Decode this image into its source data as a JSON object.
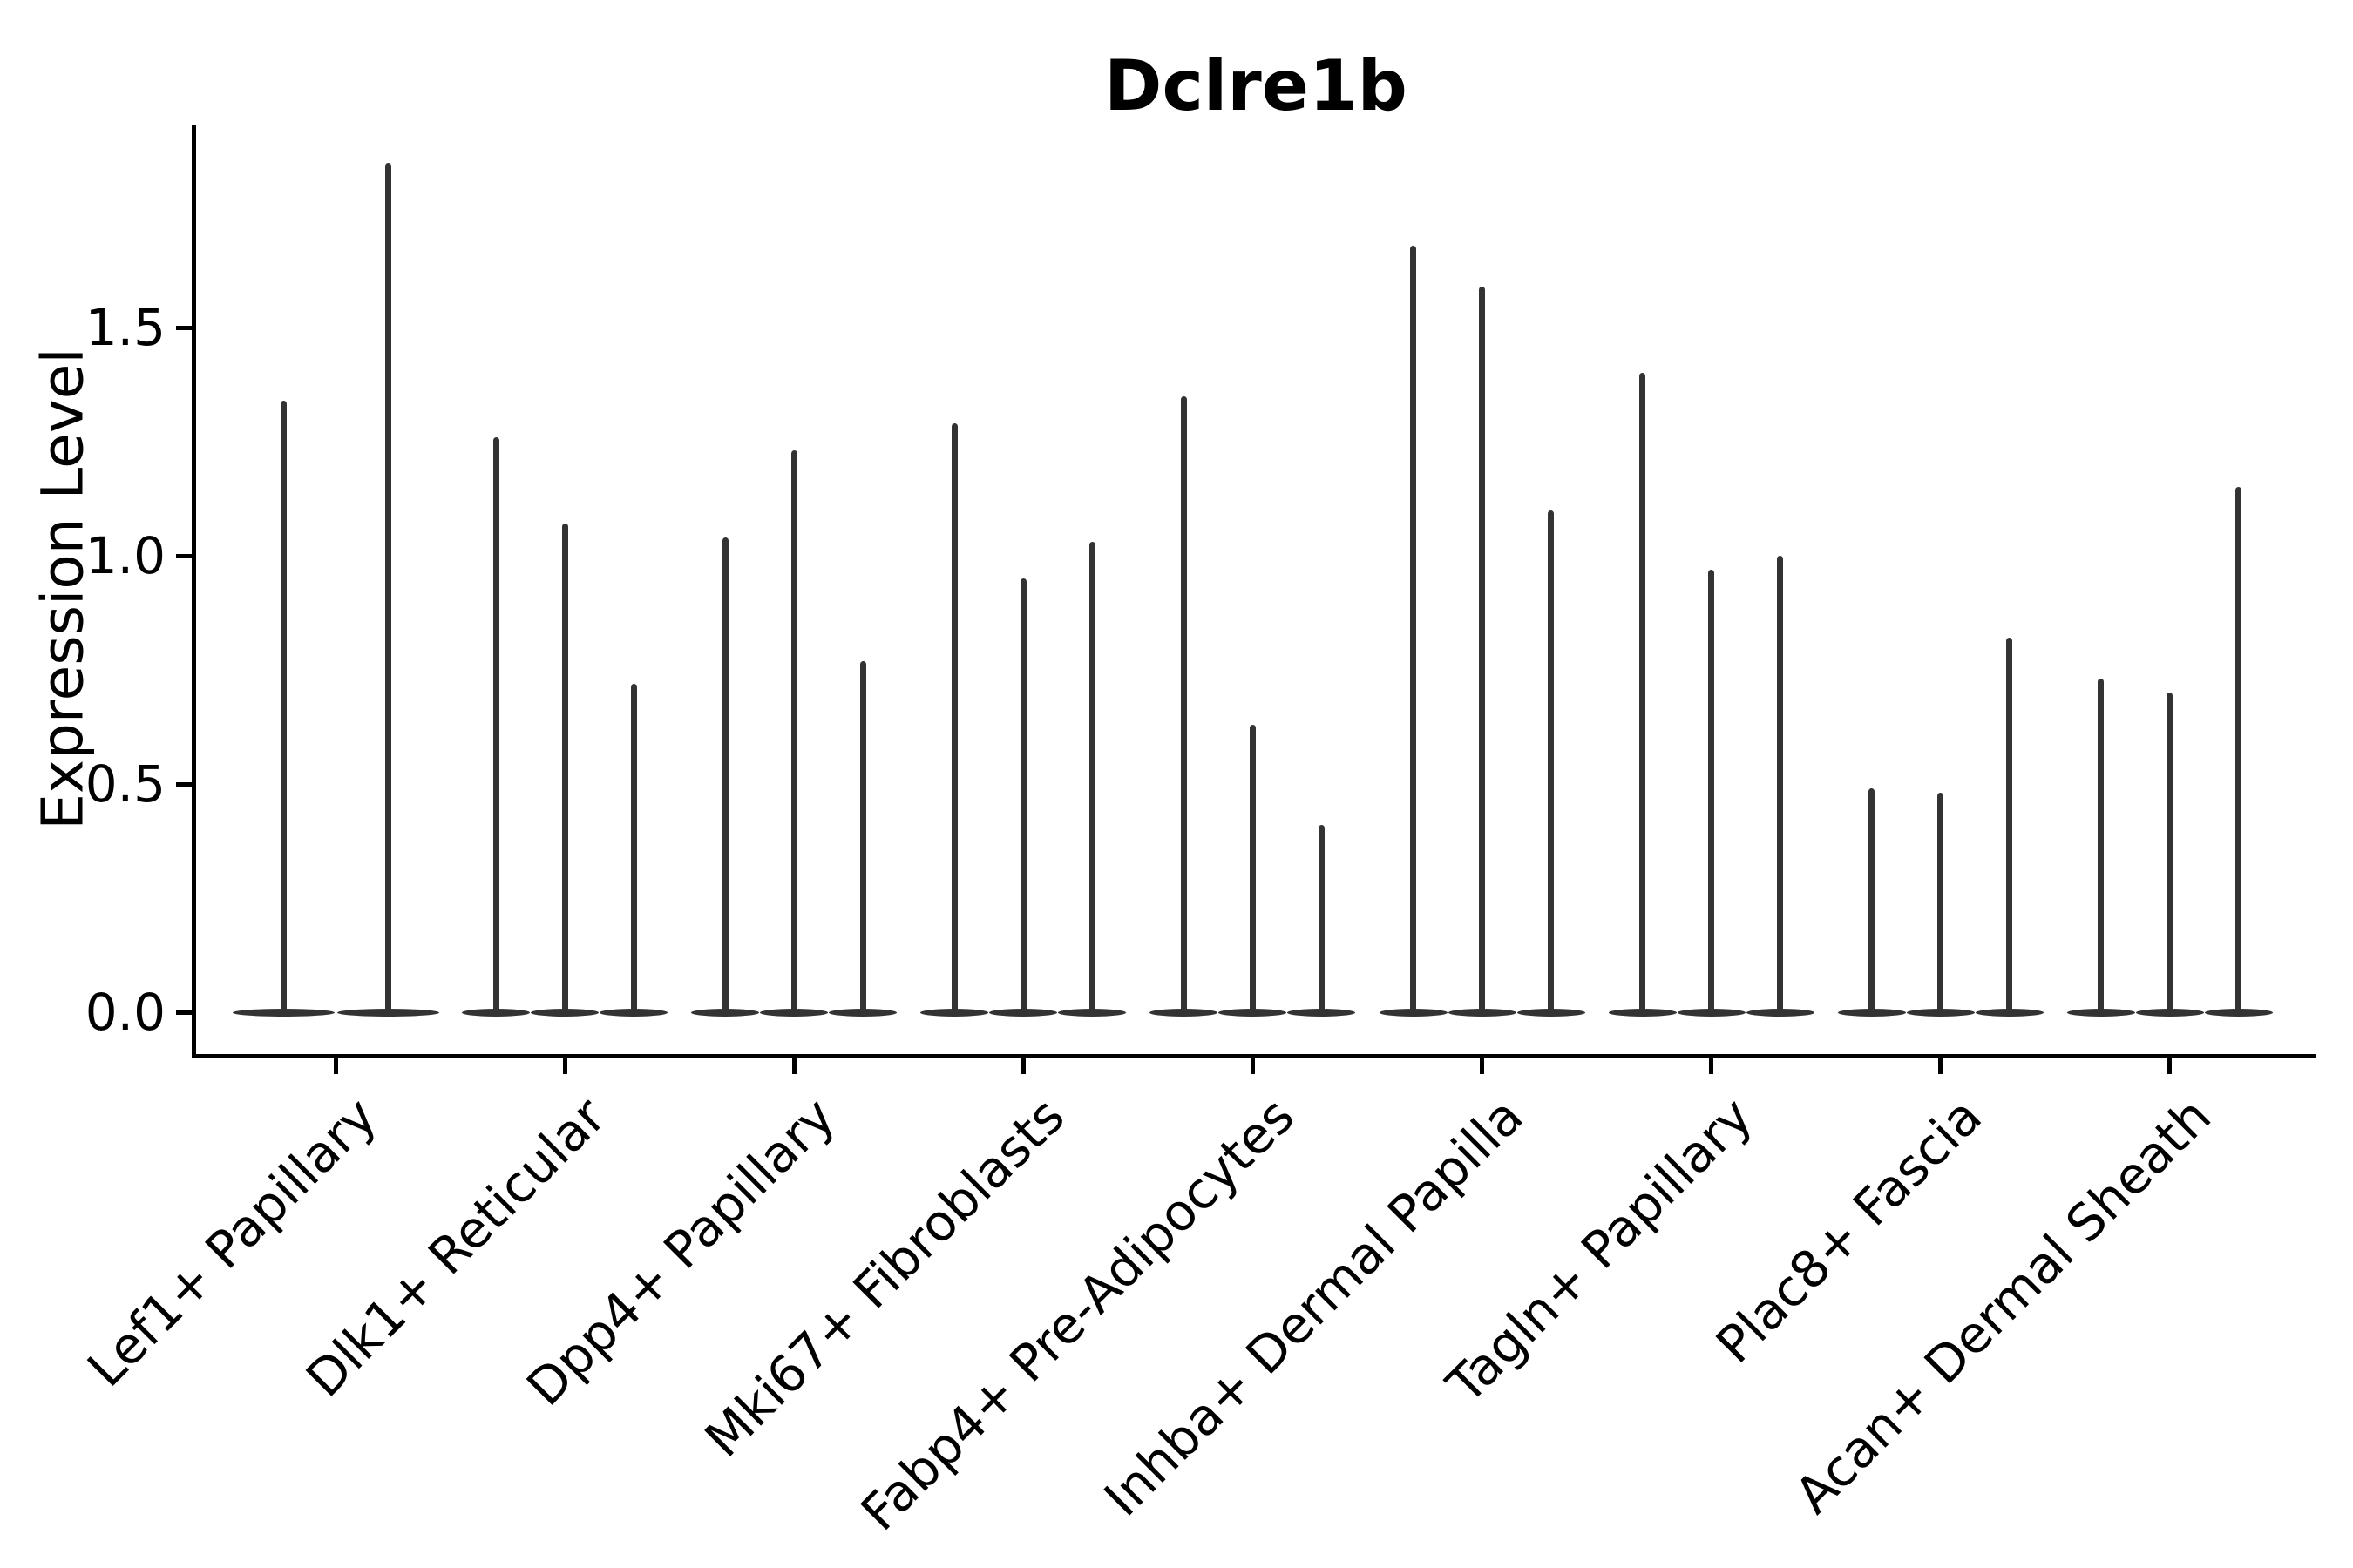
{
  "title": "Dclre1b",
  "axes": {
    "ylabel": "Expression Level",
    "ytick_labels": [
      "0.0",
      "0.5",
      "1.0",
      "1.5"
    ],
    "yticks": [
      0.0,
      0.5,
      1.0,
      1.5
    ]
  },
  "colors": {
    "violin": "#333333",
    "axis": "#000000",
    "text": "#000000",
    "background": "#ffffff"
  },
  "chart_data": {
    "type": "violin",
    "title": "Dclre1b",
    "xlabel": "",
    "ylabel": "Expression Level",
    "ylim": [
      -0.09,
      1.94
    ],
    "yticks": [
      0.0,
      0.5,
      1.0,
      1.5
    ],
    "grid": false,
    "legend_position": "none",
    "description": "Seurat-style violin plot of Dclre1b expression; each cluster shows narrow spike-shaped violins (mass at 0 with a thin tail). Values below are the top (maximum expression) of each spike, left to right within each cluster.",
    "categories": [
      "Lef1+ Papillary",
      "Dlk1+ Reticular",
      "Dpp4+ Papillary",
      "Mki67+ Fibroblasts",
      "Fabp4+ Pre-Adipocytes",
      "Inhba+ Dermal Papilla",
      "Tagln+ Papillary",
      "Plac8+ Fascia",
      "Acan+ Dermal Sheath"
    ],
    "groups": [
      {
        "label": "Lef1+ Papillary",
        "spike_maxima": [
          1.34,
          1.86
        ]
      },
      {
        "label": "Dlk1+ Reticular",
        "spike_maxima": [
          1.26,
          1.07,
          0.72
        ]
      },
      {
        "label": "Dpp4+ Papillary",
        "spike_maxima": [
          1.04,
          1.23,
          0.77
        ]
      },
      {
        "label": "Mki67+ Fibroblasts",
        "spike_maxima": [
          1.29,
          0.95,
          1.03
        ]
      },
      {
        "label": "Fabp4+ Pre-Adipocytes",
        "spike_maxima": [
          1.35,
          0.63,
          0.41
        ]
      },
      {
        "label": "Inhba+ Dermal Papilla",
        "spike_maxima": [
          1.68,
          1.59,
          1.1
        ]
      },
      {
        "label": "Tagln+ Papillary",
        "spike_maxima": [
          1.4,
          0.97,
          1.0
        ]
      },
      {
        "label": "Plac8+ Fascia",
        "spike_maxima": [
          0.49,
          0.48,
          0.82
        ]
      },
      {
        "label": "Acan+ Dermal Sheath",
        "spike_maxima": [
          0.73,
          0.7,
          1.15
        ]
      }
    ]
  }
}
